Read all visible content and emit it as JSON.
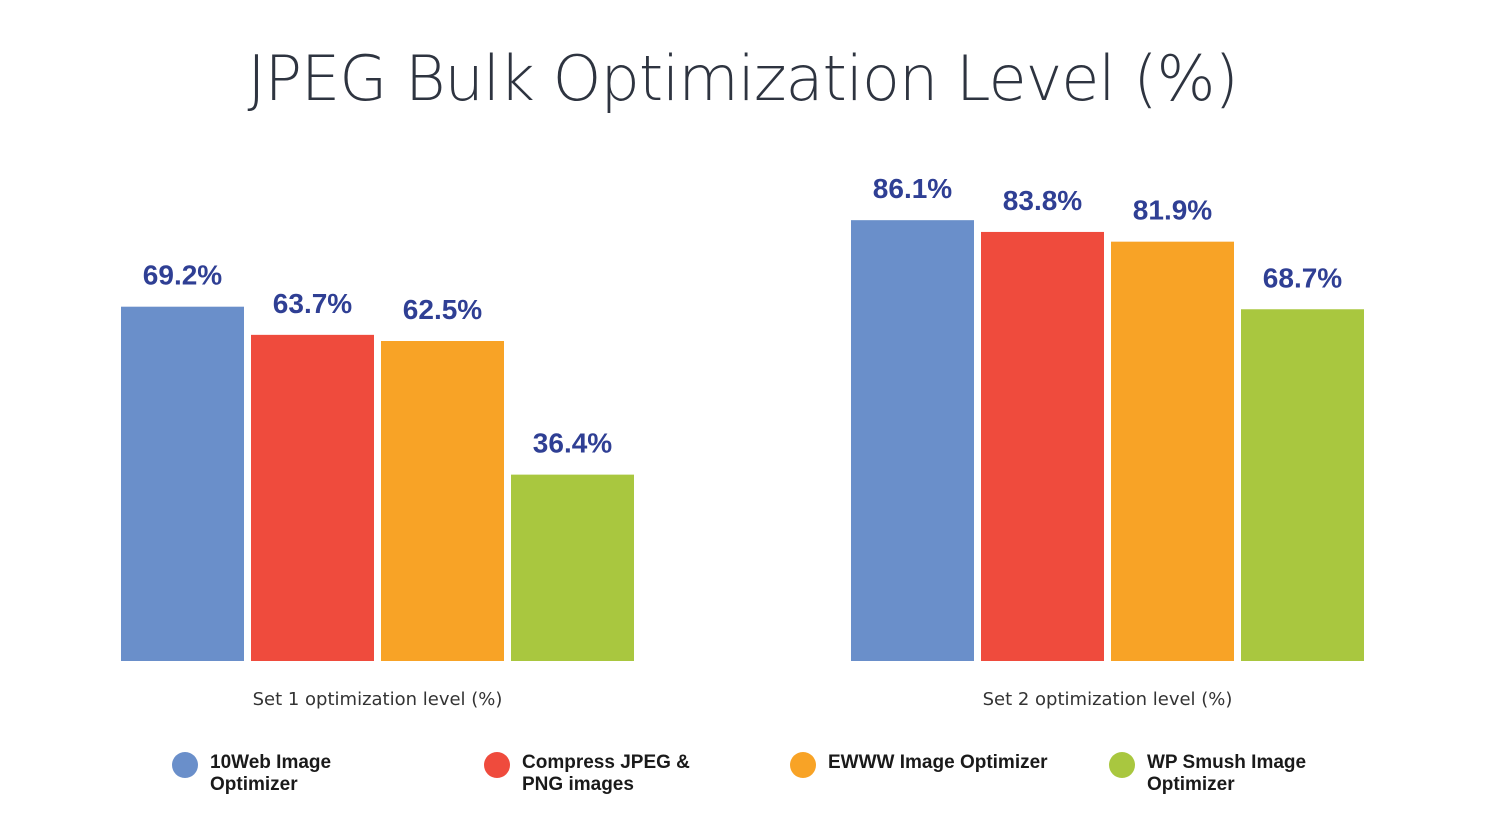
{
  "title": "JPEG Bulk Optimization Level (%)",
  "colors": {
    "10web": "#6a8fca",
    "compress": "#ef4b3d",
    "ewww": "#f8a326",
    "smush": "#a9c73f",
    "label": "#2f3f94"
  },
  "chart_data": [
    {
      "type": "bar",
      "xlabel": "Set 1 optimization level (%)",
      "categories": [
        "10Web Image Optimizer",
        "Compress JPEG & PNG images",
        "EWWW Image Optimizer",
        "WP Smush Image Optimizer"
      ],
      "values": [
        69.2,
        63.7,
        62.5,
        36.4
      ],
      "value_labels": [
        "69.2%",
        "63.7%",
        "62.5%",
        "36.4%"
      ],
      "ylim": [
        0,
        100
      ],
      "grid": false
    },
    {
      "type": "bar",
      "xlabel": "Set 2 optimization level (%)",
      "categories": [
        "10Web Image Optimizer",
        "Compress JPEG & PNG images",
        "EWWW Image Optimizer",
        "WP Smush Image Optimizer"
      ],
      "values": [
        86.1,
        83.8,
        81.9,
        68.7
      ],
      "value_labels": [
        "86.1%",
        "83.8%",
        "81.9%",
        "68.7%"
      ],
      "ylim": [
        0,
        100
      ],
      "grid": false
    }
  ],
  "legend": {
    "placement": "bottom",
    "items": [
      {
        "label": "10Web Image Optimizer",
        "color": "#6a8fca"
      },
      {
        "label": "Compress JPEG & PNG images",
        "color": "#ef4b3d"
      },
      {
        "label": "EWWW Image Optimizer",
        "color": "#f8a326"
      },
      {
        "label": "WP Smush Image Optimizer",
        "color": "#a9c73f"
      }
    ]
  }
}
